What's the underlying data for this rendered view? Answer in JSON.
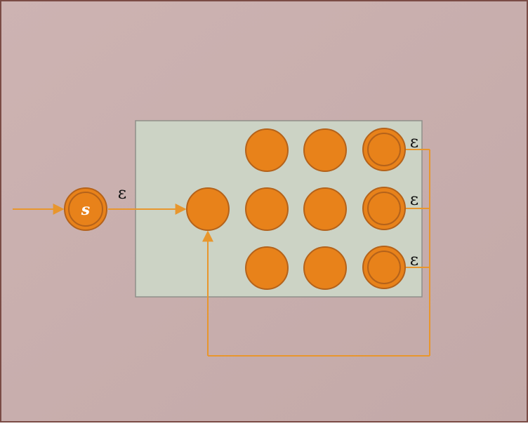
{
  "colors": {
    "background_top": "#cdb3b2",
    "background_bottom": "#c6acab",
    "border": "#7a4b45",
    "box_fill": "#ccd3c5",
    "box_stroke": "#8f8f8a",
    "state_fill": "#e8821a",
    "state_stroke": "#b4621a",
    "edge": "#e8962d",
    "label_text": "#111111",
    "start_label_text": "#ffffff"
  },
  "start_state": {
    "label": "s",
    "accepting": true
  },
  "edge_labels": {
    "start_to_inner": "ε",
    "accept_top": "ε",
    "accept_middle": "ε",
    "accept_bottom": "ε"
  },
  "inner_states": {
    "accepting_count": 3,
    "non_accepting_count": 7
  }
}
